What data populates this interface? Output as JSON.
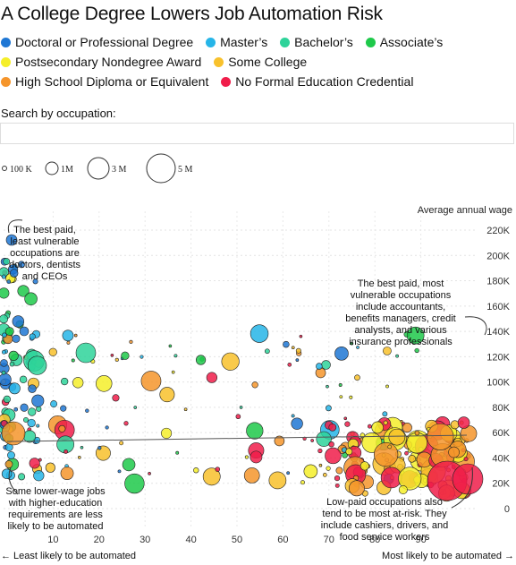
{
  "title": "A College Degree Lowers Job Automation Risk",
  "legend": [
    {
      "label": "Doctoral or Professional Degree",
      "color": "#1f77d4"
    },
    {
      "label": "Master’s",
      "color": "#26b5e8"
    },
    {
      "label": "Bachelor’s",
      "color": "#2ed39a"
    },
    {
      "label": "Associate’s",
      "color": "#1ec94a"
    },
    {
      "label": "Postsecondary Nondegree Award",
      "color": "#f5ee2a"
    },
    {
      "label": "Some College",
      "color": "#f8c12c"
    },
    {
      "label": "High School Diploma or Equivalent",
      "color": "#f5952b"
    },
    {
      "label": "No Formal Education Credential",
      "color": "#f01d4a"
    }
  ],
  "search": {
    "label": "Search by occupation:",
    "placeholder": ""
  },
  "size_legend": [
    {
      "label": "100 K",
      "value": 100000
    },
    {
      "label": "1M",
      "value": 1000000
    },
    {
      "label": "3 M",
      "value": 3000000
    },
    {
      "label": "5 M",
      "value": 5000000
    }
  ],
  "chart_data": {
    "type": "scatter",
    "ylabel": "Average annual wage",
    "x_ticks": [
      "10",
      "20",
      "30",
      "40",
      "50",
      "60",
      "70",
      "80",
      "90"
    ],
    "y_ticks": [
      "0",
      "20K",
      "40K",
      "60K",
      "80K",
      "100K",
      "120K",
      "140K",
      "160K",
      "180K",
      "200K",
      "220K"
    ],
    "xlim": [
      0,
      100
    ],
    "ylim": [
      0,
      230000
    ],
    "trend": {
      "x": [
        0,
        100
      ],
      "y": [
        53000,
        58000
      ]
    },
    "annotations": [
      "The best paid, least vulnerable occupations are doctors, dentists and CEOs",
      "The best paid, most vulnerable occupations include accountants, benefits managers, credit analysts, and various insurance professionals",
      "Some lower-wage jobs with higher-education requirements are less likely to be automated",
      "Low-paid occupations also tend to be most at-risk. They include cashiers, drivers, and food service workers"
    ],
    "x_axis_left": "← Least likely to be automated",
    "x_axis_right": "Most likely to be automated →"
  }
}
